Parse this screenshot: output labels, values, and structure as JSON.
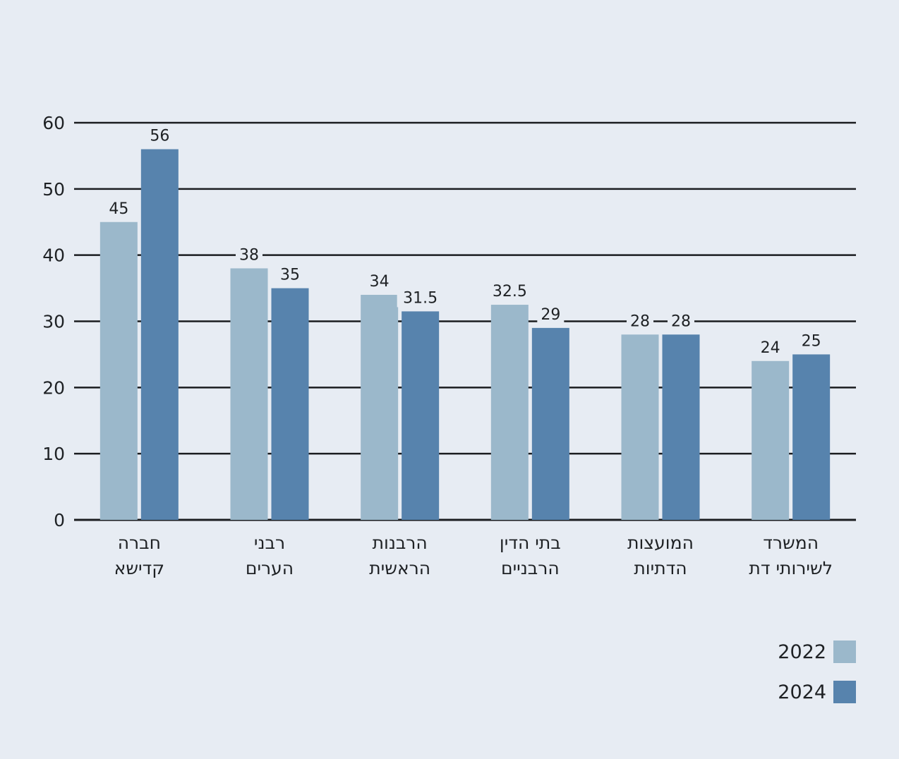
{
  "chart_data": {
    "type": "bar",
    "categories": [
      [
        "חברה",
        "קדישא"
      ],
      [
        "רבני",
        "הערים"
      ],
      [
        "הרבנות",
        "הראשית"
      ],
      [
        "בתי הדין",
        "הרבניים"
      ],
      [
        "המועצות",
        "הדתיות"
      ],
      [
        "המשרד",
        "לשירותי דת"
      ]
    ],
    "series": [
      {
        "name": "2022",
        "color": "#9bb8cb",
        "values": [
          45,
          38,
          34,
          32.5,
          28,
          24
        ],
        "labels": [
          "45",
          "38",
          "34",
          "32.5",
          "28",
          "24"
        ]
      },
      {
        "name": "2024",
        "color": "#5783ad",
        "values": [
          56,
          35,
          31.5,
          29,
          28,
          25
        ],
        "labels": [
          "56",
          "35",
          "31.5",
          "29",
          "28",
          "25"
        ]
      }
    ],
    "ylim": [
      0,
      60
    ],
    "yticks": [
      "0",
      "10",
      "20",
      "30",
      "40",
      "50",
      "60"
    ],
    "grid": true,
    "legend": "bottom-right"
  }
}
